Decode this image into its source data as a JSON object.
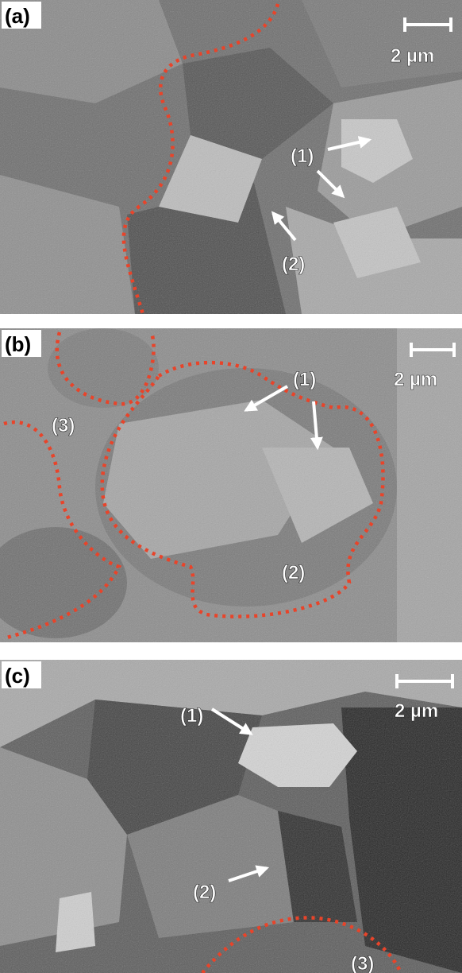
{
  "panels": [
    {
      "label": "(a)",
      "scale_bar": "2 µm",
      "annotations": [
        "(1)",
        "(2)"
      ]
    },
    {
      "label": "(b)",
      "scale_bar": "2 µm",
      "annotations": [
        "(1)",
        "(2)",
        "(3)"
      ]
    },
    {
      "label": "(c)",
      "scale_bar": "2 µm",
      "annotations": [
        "(1)",
        "(2)",
        "(3)"
      ]
    }
  ]
}
